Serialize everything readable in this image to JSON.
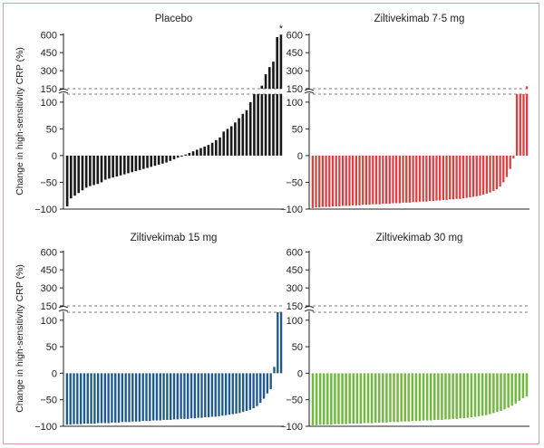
{
  "chart_data": [
    {
      "type": "bar",
      "title": "Placebo",
      "color": "#1a1a1a",
      "ylabel": "Change in high-sensitivity CRP (%)",
      "ylim_lower": [
        -100,
        115
      ],
      "ylim_upper": [
        150,
        610
      ],
      "yticks_lower": [
        "100",
        "50",
        "0",
        "−50",
        "−100"
      ],
      "yticks_upper": [
        "600",
        "450",
        "300",
        "150"
      ],
      "annotation": "*",
      "values": [
        -95,
        -80,
        -75,
        -70,
        -65,
        -60,
        -57,
        -55,
        -53,
        -50,
        -45,
        -43,
        -41,
        -39,
        -37,
        -35,
        -33,
        -31,
        -29,
        -27,
        -25,
        -23,
        -21,
        -19,
        -17,
        -15,
        -13,
        -10,
        -7,
        -4,
        -2,
        2,
        5,
        8,
        11,
        14,
        17,
        20,
        24,
        29,
        34,
        45,
        50,
        55,
        62,
        70,
        78,
        85,
        100,
        115,
        130,
        175,
        270,
        330,
        375,
        580,
        600
      ]
    },
    {
      "type": "bar",
      "title": "Ziltivekimab 7·5 mg",
      "color": "#d94141",
      "ylim_lower": [
        -100,
        115
      ],
      "ylim_upper": [
        150,
        610
      ],
      "yticks_lower": [
        "100",
        "50",
        "0",
        "−50",
        "−100"
      ],
      "yticks_upper": [
        "600",
        "450",
        "300",
        "150"
      ],
      "values": [
        -98,
        -97,
        -97,
        -96,
        -96,
        -96,
        -95,
        -95,
        -95,
        -94,
        -94,
        -94,
        -93,
        -93,
        -93,
        -92,
        -92,
        -92,
        -91,
        -91,
        -91,
        -90,
        -90,
        -90,
        -89,
        -89,
        -89,
        -88,
        -88,
        -88,
        -87,
        -87,
        -86,
        -86,
        -86,
        -85,
        -85,
        -84,
        -84,
        -83,
        -83,
        -82,
        -82,
        -81,
        -81,
        -80,
        -79,
        -78,
        -77,
        -76,
        -75,
        -73,
        -71,
        -69,
        -66,
        -63,
        -58,
        -50,
        -40,
        -25,
        -5,
        120,
        130,
        140,
        170
      ]
    },
    {
      "type": "bar",
      "title": "Ziltivekimab 15 mg",
      "color": "#1f5a8f",
      "ylabel": "Change in high-sensitivity CRP (%)",
      "ylim_lower": [
        -100,
        115
      ],
      "ylim_upper": [
        150,
        610
      ],
      "yticks_lower": [
        "100",
        "50",
        "0",
        "−50",
        "−100"
      ],
      "yticks_upper": [
        "600",
        "450",
        "300",
        "150"
      ],
      "values": [
        -97,
        -97,
        -96,
        -96,
        -96,
        -95,
        -95,
        -95,
        -95,
        -94,
        -94,
        -94,
        -94,
        -93,
        -93,
        -93,
        -92,
        -92,
        -92,
        -91,
        -91,
        -91,
        -90,
        -90,
        -90,
        -89,
        -89,
        -89,
        -88,
        -88,
        -88,
        -87,
        -87,
        -86,
        -86,
        -86,
        -85,
        -85,
        -84,
        -84,
        -83,
        -83,
        -82,
        -82,
        -81,
        -80,
        -79,
        -78,
        -77,
        -76,
        -75,
        -73,
        -71,
        -69,
        -66,
        -62,
        -56,
        -48,
        -38,
        -30,
        12,
        120,
        140
      ]
    },
    {
      "type": "bar",
      "title": "Ziltivekimab 30 mg",
      "color": "#72b843",
      "ylim_lower": [
        -100,
        115
      ],
      "ylim_upper": [
        150,
        610
      ],
      "yticks_lower": [
        "100",
        "50",
        "0",
        "−50",
        "−100"
      ],
      "yticks_upper": [
        "600",
        "450",
        "300",
        "150"
      ],
      "values": [
        -98,
        -98,
        -97,
        -97,
        -97,
        -97,
        -96,
        -96,
        -96,
        -96,
        -95,
        -95,
        -95,
        -95,
        -94,
        -94,
        -94,
        -93,
        -93,
        -93,
        -93,
        -92,
        -92,
        -92,
        -91,
        -91,
        -91,
        -90,
        -90,
        -90,
        -89,
        -89,
        -89,
        -88,
        -88,
        -88,
        -87,
        -87,
        -86,
        -86,
        -85,
        -85,
        -84,
        -83,
        -82,
        -81,
        -80,
        -79,
        -77,
        -75,
        -73,
        -71,
        -68,
        -65,
        -61,
        -57,
        -52,
        -47,
        -44
      ]
    }
  ]
}
